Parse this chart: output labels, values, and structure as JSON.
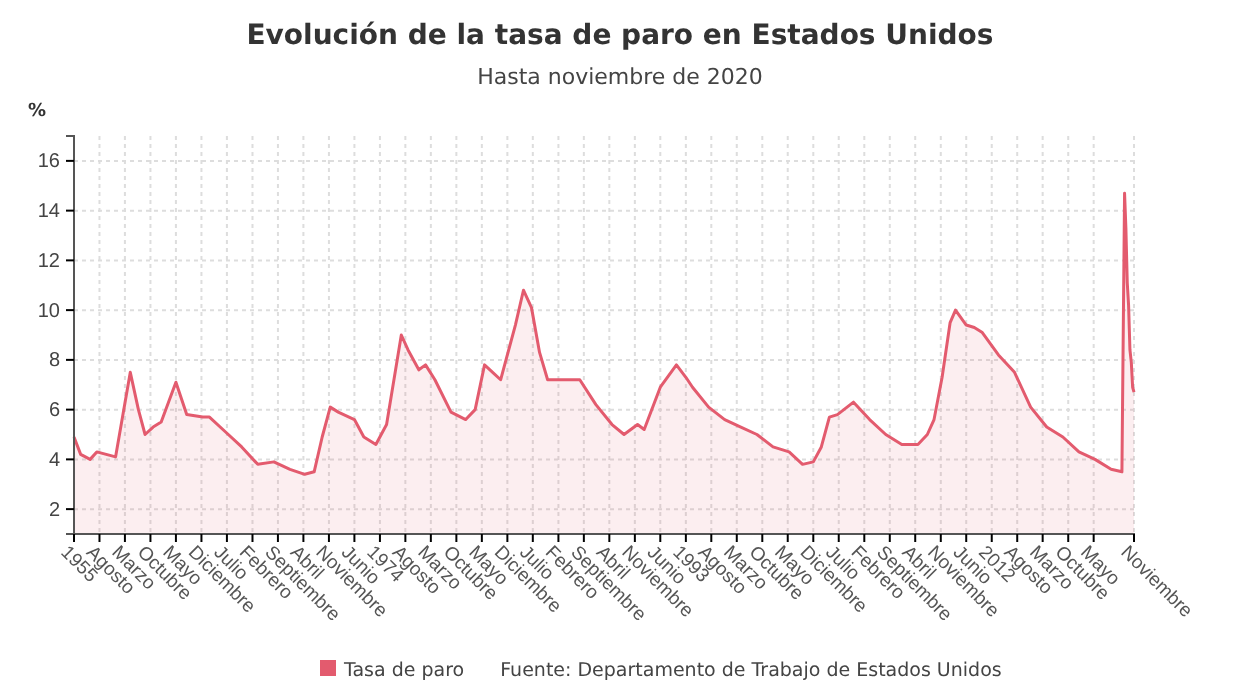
{
  "chart_data": {
    "type": "area",
    "title": "Evolución de la tasa de paro en Estados Unidos",
    "subtitle": "Hasta noviembre de 2020",
    "ylabel": "%",
    "annotations": [
      "Fuente: Departamento de Trabajo de Estados Unidos"
    ],
    "legend": "bottom",
    "grid": true,
    "ylim": [
      1,
      17
    ],
    "yticks": [
      2,
      4,
      6,
      8,
      10,
      12,
      14,
      16
    ],
    "xlim": [
      "1955-01",
      "2020-11"
    ],
    "xticks": [
      {
        "value": "1955-01",
        "label": "1955"
      },
      {
        "value": "1956-08",
        "label": "Agosto"
      },
      {
        "value": "1958-03",
        "label": "Marzo"
      },
      {
        "value": "1959-10",
        "label": "Octubre"
      },
      {
        "value": "1961-05",
        "label": "Mayo"
      },
      {
        "value": "1962-12",
        "label": "Diciembre"
      },
      {
        "value": "1964-07",
        "label": "Julio"
      },
      {
        "value": "1966-02",
        "label": "Febrero"
      },
      {
        "value": "1967-09",
        "label": "Septiembre"
      },
      {
        "value": "1969-04",
        "label": "Abril"
      },
      {
        "value": "1970-11",
        "label": "Noviembre"
      },
      {
        "value": "1972-06",
        "label": "Junio"
      },
      {
        "value": "1974-01",
        "label": "1974"
      },
      {
        "value": "1975-08",
        "label": "Agosto"
      },
      {
        "value": "1977-03",
        "label": "Marzo"
      },
      {
        "value": "1978-10",
        "label": "Octubre"
      },
      {
        "value": "1980-05",
        "label": "Mayo"
      },
      {
        "value": "1981-12",
        "label": "Diciembre"
      },
      {
        "value": "1983-07",
        "label": "Julio"
      },
      {
        "value": "1985-02",
        "label": "Febrero"
      },
      {
        "value": "1986-09",
        "label": "Septiembre"
      },
      {
        "value": "1988-04",
        "label": "Abril"
      },
      {
        "value": "1989-11",
        "label": "Noviembre"
      },
      {
        "value": "1991-06",
        "label": "Junio"
      },
      {
        "value": "1993-01",
        "label": "1993"
      },
      {
        "value": "1994-08",
        "label": "Agosto"
      },
      {
        "value": "1996-03",
        "label": "Marzo"
      },
      {
        "value": "1997-10",
        "label": "Octubre"
      },
      {
        "value": "1999-05",
        "label": "Mayo"
      },
      {
        "value": "2000-12",
        "label": "Diciembre"
      },
      {
        "value": "2002-07",
        "label": "Julio"
      },
      {
        "value": "2004-02",
        "label": "Febrero"
      },
      {
        "value": "2005-09",
        "label": "Septiembre"
      },
      {
        "value": "2007-04",
        "label": "Abril"
      },
      {
        "value": "2008-11",
        "label": "Noviembre"
      },
      {
        "value": "2010-06",
        "label": "Junio"
      },
      {
        "value": "2012-01",
        "label": "2012"
      },
      {
        "value": "2013-08",
        "label": "Agosto"
      },
      {
        "value": "2015-03",
        "label": "Marzo"
      },
      {
        "value": "2016-10",
        "label": "Octubre"
      },
      {
        "value": "2018-05",
        "label": "Mayo"
      },
      {
        "value": "2020-11",
        "label": "Noviembre"
      }
    ],
    "series": [
      {
        "name": "Tasa de paro",
        "color": "#e35b6e",
        "x": [
          "1955-01",
          "1955-06",
          "1956-01",
          "1956-06",
          "1957-01",
          "1957-08",
          "1958-07",
          "1959-01",
          "1959-06",
          "1959-12",
          "1960-06",
          "1961-05",
          "1962-01",
          "1963-01",
          "1963-06",
          "1964-06",
          "1965-06",
          "1966-06",
          "1967-06",
          "1968-06",
          "1969-05",
          "1969-12",
          "1970-06",
          "1970-12",
          "1971-06",
          "1972-06",
          "1973-01",
          "1973-10",
          "1974-06",
          "1975-05",
          "1975-10",
          "1976-06",
          "1976-11",
          "1977-06",
          "1978-06",
          "1979-05",
          "1979-12",
          "1980-07",
          "1981-01",
          "1981-07",
          "1982-06",
          "1982-12",
          "1983-06",
          "1983-12",
          "1984-06",
          "1985-06",
          "1986-06",
          "1987-06",
          "1988-06",
          "1989-03",
          "1990-01",
          "1990-06",
          "1991-06",
          "1992-06",
          "1993-01",
          "1993-06",
          "1994-06",
          "1995-06",
          "1996-06",
          "1997-06",
          "1998-06",
          "1999-06",
          "2000-04",
          "2000-12",
          "2001-06",
          "2001-12",
          "2002-06",
          "2003-06",
          "2004-06",
          "2005-06",
          "2006-06",
          "2007-06",
          "2008-01",
          "2008-06",
          "2008-12",
          "2009-06",
          "2009-10",
          "2010-06",
          "2010-12",
          "2011-06",
          "2012-06",
          "2013-06",
          "2014-06",
          "2015-06",
          "2016-06",
          "2017-06",
          "2018-06",
          "2019-06",
          "2020-02",
          "2020-04",
          "2020-05",
          "2020-06",
          "2020-07",
          "2020-08",
          "2020-09",
          "2020-10",
          "2020-11"
        ],
        "values": [
          4.9,
          4.2,
          4.0,
          4.3,
          4.2,
          4.1,
          7.5,
          6.0,
          5.0,
          5.3,
          5.5,
          7.1,
          5.8,
          5.7,
          5.7,
          5.1,
          4.5,
          3.8,
          3.9,
          3.6,
          3.4,
          3.5,
          4.9,
          6.1,
          5.9,
          5.6,
          4.9,
          4.6,
          5.4,
          9.0,
          8.4,
          7.6,
          7.8,
          7.2,
          5.9,
          5.6,
          6.0,
          7.8,
          7.5,
          7.2,
          9.4,
          10.8,
          10.1,
          8.3,
          7.2,
          7.2,
          7.2,
          6.2,
          5.4,
          5.0,
          5.4,
          5.2,
          6.9,
          7.8,
          7.3,
          6.9,
          6.1,
          5.6,
          5.3,
          5.0,
          4.5,
          4.3,
          3.8,
          3.9,
          4.5,
          5.7,
          5.8,
          6.3,
          5.6,
          5.0,
          4.6,
          4.6,
          5.0,
          5.6,
          7.3,
          9.5,
          10.0,
          9.4,
          9.3,
          9.1,
          8.2,
          7.5,
          6.1,
          5.3,
          4.9,
          4.3,
          4.0,
          3.6,
          3.5,
          14.7,
          13.3,
          11.1,
          10.2,
          8.4,
          7.9,
          6.9,
          6.7
        ]
      }
    ]
  }
}
